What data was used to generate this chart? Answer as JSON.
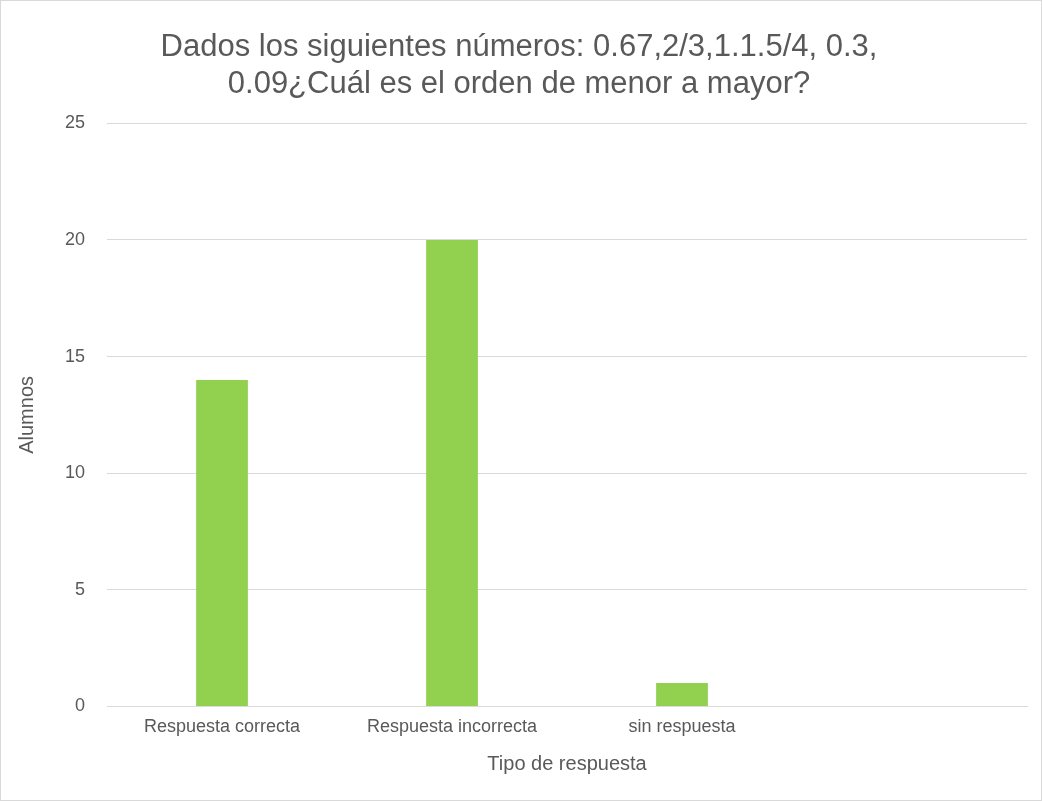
{
  "chart_data": {
    "type": "bar",
    "title": [
      "Dados los siguientes números: 0.67,2/3,1.1.5/4, 0.3,",
      "0.09¿Cuál es el orden de menor a mayor?"
    ],
    "xlabel": "Tipo de respuesta",
    "ylabel": "Alumnos",
    "categories": [
      "Respuesta correcta",
      "Respuesta incorrecta",
      "sin respuesta",
      null
    ],
    "values": [
      14,
      20,
      1,
      null
    ],
    "color": "#92d050",
    "ylim": [
      0,
      25
    ],
    "yticks": [
      0,
      5,
      10,
      15,
      20,
      25
    ],
    "grid": "y",
    "legend": false
  }
}
